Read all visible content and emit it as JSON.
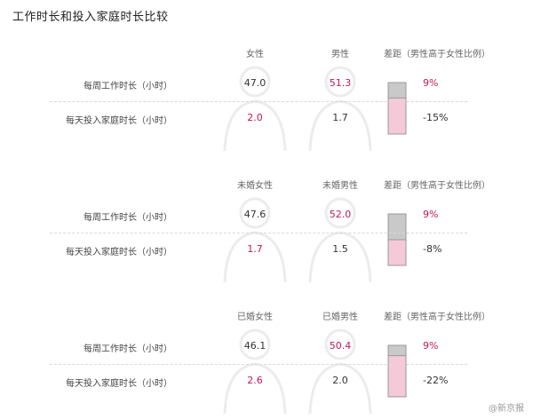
{
  "title": "工作时长和投入家庭时长比较",
  "colors": {
    "pink": "#c2185b",
    "bar_gray": "#c9c9c9",
    "bar_pink": "#f6c9d8",
    "outline": "#999999",
    "silhouette": "#ececec"
  },
  "chart_data": [
    {
      "type": "table",
      "columns": [
        "女性",
        "男性"
      ],
      "gap_header": "差距（男性高于女性比例）",
      "rows": [
        {
          "label": "每周工作时长（小时）",
          "values": [
            "47.0",
            "51.3"
          ],
          "highlight": [
            false,
            true
          ],
          "gap": "9%",
          "gap_highlight": true
        },
        {
          "label": "每天投入家庭时长（小时）",
          "values": [
            "2.0",
            "1.7"
          ],
          "highlight": [
            true,
            false
          ],
          "gap": "-15%",
          "gap_highlight": false
        }
      ],
      "bar_levels": {
        "gray": 0.3,
        "pink": 0.7
      }
    },
    {
      "type": "table",
      "columns": [
        "未婚女性",
        "未婚男性"
      ],
      "gap_header": "差距（男性高于女性比例）",
      "rows": [
        {
          "label": "每周工作时长（小时）",
          "values": [
            "47.6",
            "52.0"
          ],
          "highlight": [
            false,
            true
          ],
          "gap": "9%",
          "gap_highlight": true
        },
        {
          "label": "每天投入家庭时长（小时）",
          "values": [
            "1.7",
            "1.5"
          ],
          "highlight": [
            true,
            false
          ],
          "gap": "-8%",
          "gap_highlight": false
        }
      ],
      "bar_levels": {
        "gray": 0.5,
        "pink": 0.5
      }
    },
    {
      "type": "table",
      "columns": [
        "已婚女性",
        "已婚男性"
      ],
      "gap_header": "差距（男性高于女性比例）",
      "rows": [
        {
          "label": "每周工作时长（小时）",
          "values": [
            "46.1",
            "50.4"
          ],
          "highlight": [
            false,
            true
          ],
          "gap": "9%",
          "gap_highlight": true
        },
        {
          "label": "每天投入家庭时长（小时）",
          "values": [
            "2.6",
            "2.0"
          ],
          "highlight": [
            true,
            false
          ],
          "gap": "-22%",
          "gap_highlight": false
        }
      ],
      "bar_levels": {
        "gray": 0.2,
        "pink": 0.8
      }
    }
  ],
  "watermark": "@新京报"
}
